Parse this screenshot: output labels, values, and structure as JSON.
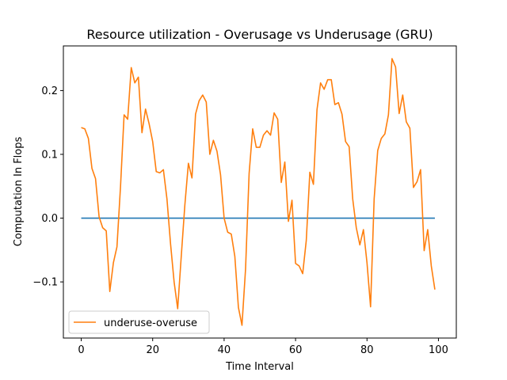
{
  "chart_data": {
    "type": "line",
    "title": "Resource utilization - Overusage vs Underusage (GRU)",
    "xlabel": "Time Interval",
    "ylabel": "Computation In Flops",
    "xlim": [
      -5,
      105
    ],
    "ylim": [
      -0.188,
      0.27
    ],
    "xticks": [
      0,
      20,
      40,
      60,
      80,
      100
    ],
    "yticks": [
      -0.1,
      0.0,
      0.1,
      0.2
    ],
    "ytick_labels": [
      "−0.1",
      "0.0",
      "0.1",
      "0.2"
    ],
    "grid": false,
    "legend_position": "lower-left",
    "series": [
      {
        "name": "",
        "color": "#1f77b4",
        "x": [
          0,
          99
        ],
        "values": [
          0,
          0
        ]
      },
      {
        "name": "underuse-overuse",
        "color": "#ff7f0e",
        "x": [
          0,
          1,
          2,
          3,
          4,
          5,
          6,
          7,
          8,
          9,
          10,
          11,
          12,
          13,
          14,
          15,
          16,
          17,
          18,
          19,
          20,
          21,
          22,
          23,
          24,
          25,
          26,
          27,
          28,
          29,
          30,
          31,
          32,
          33,
          34,
          35,
          36,
          37,
          38,
          39,
          40,
          41,
          42,
          43,
          44,
          45,
          46,
          47,
          48,
          49,
          50,
          51,
          52,
          53,
          54,
          55,
          56,
          57,
          58,
          59,
          60,
          61,
          62,
          63,
          64,
          65,
          66,
          67,
          68,
          69,
          70,
          71,
          72,
          73,
          74,
          75,
          76,
          77,
          78,
          79,
          80,
          81,
          82,
          83,
          84,
          85,
          86,
          87,
          88,
          89,
          90,
          91,
          92,
          93,
          94,
          95,
          96,
          97,
          98,
          99
        ],
        "values": [
          0.142,
          0.14,
          0.125,
          0.078,
          0.062,
          0.002,
          -0.015,
          -0.02,
          -0.115,
          -0.07,
          -0.045,
          0.05,
          0.162,
          0.155,
          0.236,
          0.212,
          0.221,
          0.134,
          0.171,
          0.148,
          0.12,
          0.073,
          0.071,
          0.076,
          0.03,
          -0.04,
          -0.1,
          -0.142,
          -0.06,
          0.02,
          0.086,
          0.063,
          0.163,
          0.184,
          0.193,
          0.182,
          0.1,
          0.122,
          0.105,
          0.068,
          0.0,
          -0.022,
          -0.025,
          -0.06,
          -0.14,
          -0.168,
          -0.08,
          0.07,
          0.14,
          0.111,
          0.111,
          0.13,
          0.137,
          0.13,
          0.165,
          0.155,
          0.056,
          0.088,
          -0.005,
          0.028,
          -0.071,
          -0.075,
          -0.087,
          -0.035,
          0.072,
          0.053,
          0.17,
          0.212,
          0.202,
          0.217,
          0.217,
          0.178,
          0.181,
          0.163,
          0.12,
          0.112,
          0.03,
          -0.015,
          -0.042,
          -0.018,
          -0.07,
          -0.139,
          0.03,
          0.106,
          0.125,
          0.132,
          0.162,
          0.25,
          0.237,
          0.164,
          0.193,
          0.151,
          0.141,
          0.048,
          0.057,
          0.076,
          -0.051,
          -0.018,
          -0.075,
          -0.112
        ]
      }
    ]
  }
}
